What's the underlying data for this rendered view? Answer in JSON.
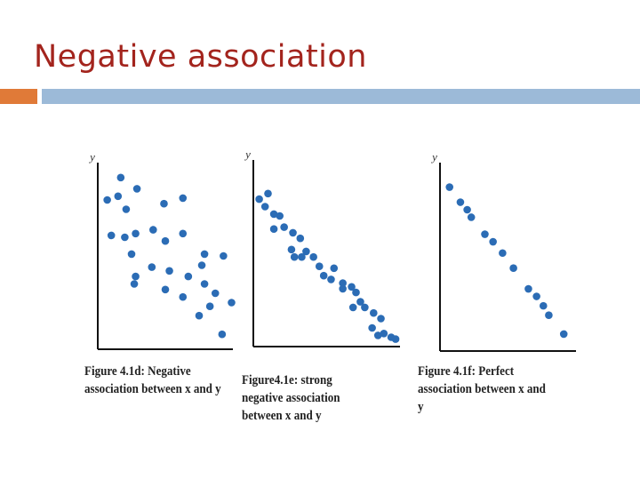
{
  "title": "Negative association",
  "chart_data": [
    {
      "type": "scatter",
      "caption": "Figure 4.1d: Negative association between x and y",
      "ylabel": "y",
      "color": "#2b6cb5",
      "xlim": [
        0,
        100
      ],
      "ylim": [
        0,
        100
      ],
      "x": [
        7,
        15,
        17,
        29,
        21,
        10,
        20,
        28,
        49,
        63,
        41,
        50,
        63,
        25,
        40,
        53,
        28,
        27,
        50,
        67,
        79,
        77,
        93,
        79,
        87,
        83,
        99,
        75,
        92,
        63
      ],
      "y": [
        80,
        82,
        92,
        86,
        75,
        61,
        60,
        62,
        78,
        81,
        64,
        58,
        62,
        51,
        44,
        42,
        39,
        35,
        32,
        39,
        51,
        45,
        50,
        35,
        30,
        23,
        25,
        18,
        8,
        28
      ]
    },
    {
      "type": "scatter",
      "caption": "Figure4.1e: strong negative association between x and y",
      "ylabel": "y",
      "color": "#2b6cb5",
      "xlim": [
        0,
        100
      ],
      "ylim": [
        0,
        100
      ],
      "x": [
        4,
        10,
        8,
        14,
        18,
        14,
        21,
        27,
        32,
        26,
        36,
        41,
        33,
        28,
        45,
        48,
        55,
        53,
        61,
        67,
        61,
        70,
        73,
        68,
        76,
        82,
        87,
        81,
        89,
        94,
        85,
        97
      ],
      "y": [
        79,
        82,
        75,
        71,
        70,
        63,
        64,
        61,
        58,
        52,
        51,
        48,
        48,
        48,
        43,
        38,
        42,
        36,
        34,
        32,
        31,
        29,
        24,
        21,
        21,
        18,
        15,
        10,
        7,
        5,
        6,
        4
      ]
    },
    {
      "type": "scatter",
      "caption": "Figure 4.1f: Perfect association between x and y",
      "ylabel": "y",
      "color": "#2b6cb5",
      "xlim": [
        0,
        100
      ],
      "ylim": [
        0,
        100
      ],
      "x": [
        7,
        15,
        20,
        23,
        33,
        39,
        46,
        54,
        65,
        71,
        76,
        80,
        91
      ],
      "y": [
        87,
        79,
        75,
        71,
        62,
        58,
        52,
        44,
        33,
        29,
        24,
        19,
        9
      ]
    }
  ]
}
